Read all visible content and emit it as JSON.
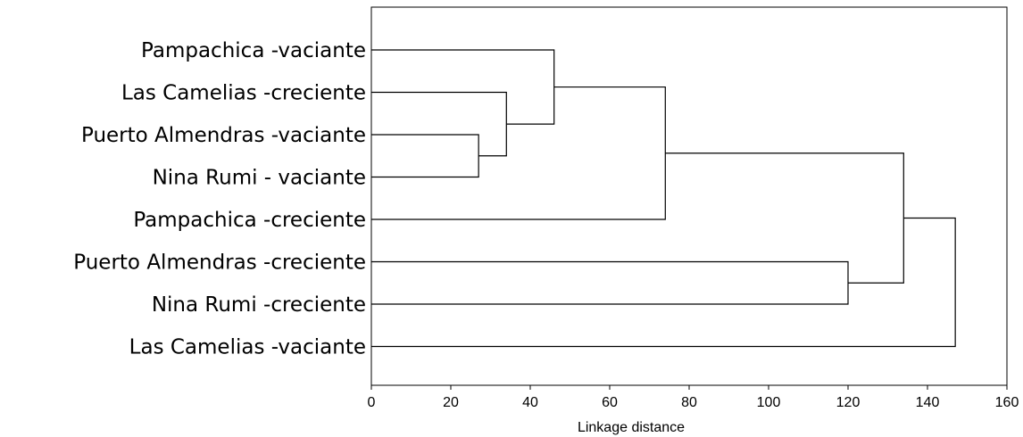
{
  "chart_data": {
    "type": "dendrogram",
    "orientation": "horizontal",
    "xlabel": "Linkage distance",
    "xlim": [
      0,
      160
    ],
    "xticks": [
      0,
      20,
      40,
      60,
      80,
      100,
      120,
      140,
      160
    ],
    "leaves": [
      "Pampachica -vaciante",
      "Las Camelias -creciente",
      "Puerto Almendras -vaciante",
      "Nina Rumi - vaciante",
      "Pampachica -creciente",
      "Puerto Almendras -creciente",
      "Nina Rumi -creciente",
      "Las Camelias -vaciante"
    ],
    "merges": [
      {
        "id": "m1",
        "children": [
          "Puerto Almendras -vaciante",
          "Nina Rumi - vaciante"
        ],
        "distance": 27
      },
      {
        "id": "m2",
        "children": [
          "Las Camelias -creciente",
          "m1"
        ],
        "distance": 34
      },
      {
        "id": "m3",
        "children": [
          "Pampachica -vaciante",
          "m2"
        ],
        "distance": 46
      },
      {
        "id": "m4",
        "children": [
          "m3",
          "Pampachica -creciente"
        ],
        "distance": 74
      },
      {
        "id": "m5",
        "children": [
          "Puerto Almendras -creciente",
          "Nina Rumi -creciente"
        ],
        "distance": 120
      },
      {
        "id": "m6",
        "children": [
          "m4",
          "m5"
        ],
        "distance": 134
      },
      {
        "id": "m7",
        "children": [
          "m6",
          "Las Camelias -vaciante"
        ],
        "distance": 147
      }
    ]
  }
}
